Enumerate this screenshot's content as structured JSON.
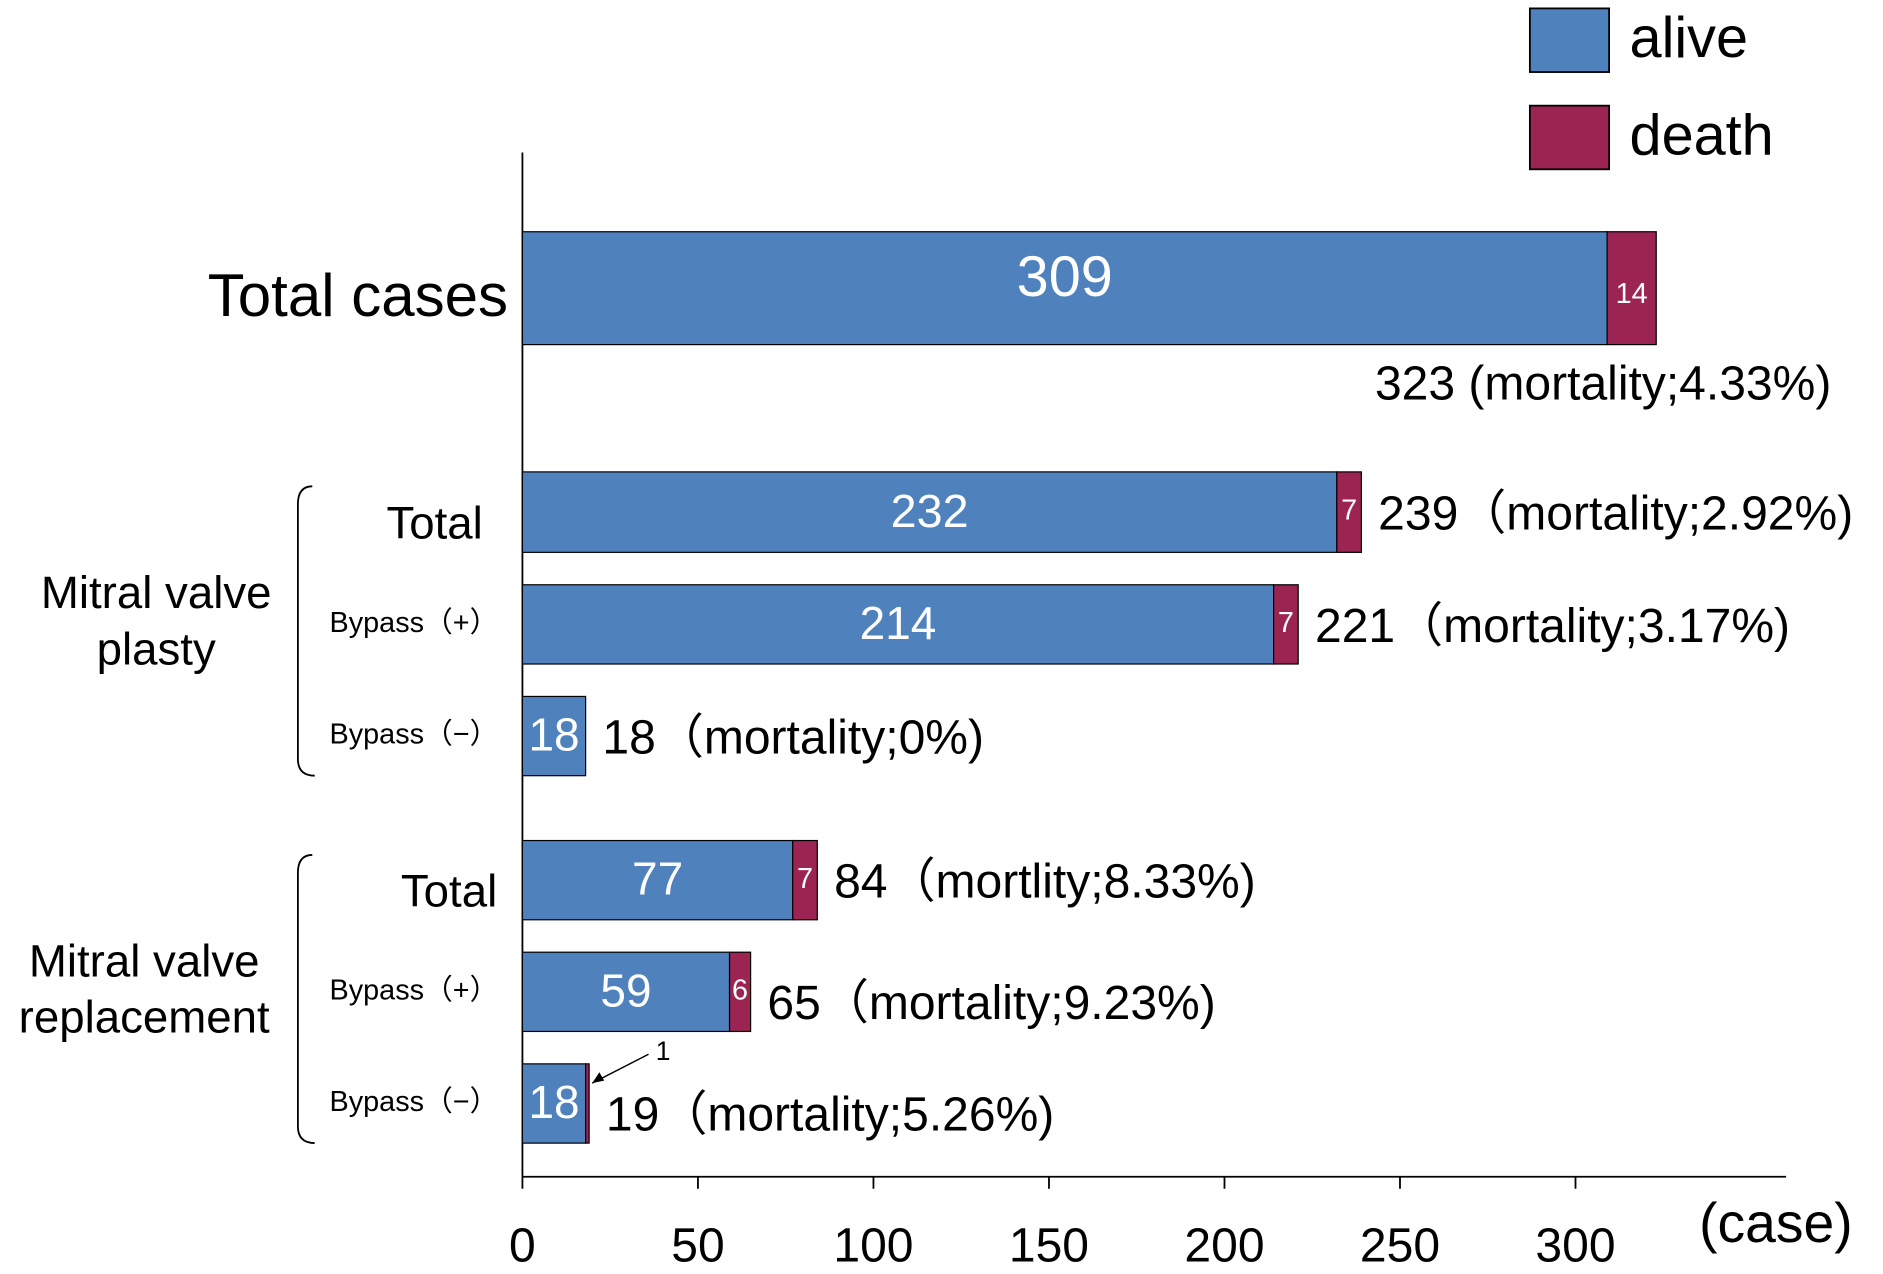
{
  "chart_data": {
    "type": "stacked_barh",
    "categories": [
      "Total cases",
      "Total",
      "Bypass（+）",
      "Bypass（−）",
      "Total",
      "Bypass（+）",
      "Bypass（−）"
    ],
    "groups": [
      {
        "label": [
          "Mitral valve",
          "plasty"
        ],
        "members": [
          1,
          2,
          3
        ]
      },
      {
        "label": [
          "Mitral valve",
          "replacement"
        ],
        "members": [
          4,
          5,
          6
        ]
      }
    ],
    "series": [
      {
        "name": "alive",
        "color": "#4f81bd",
        "values": [
          309,
          232,
          214,
          18,
          77,
          59,
          18
        ]
      },
      {
        "name": "death",
        "color": "#9b2452",
        "values": [
          14,
          7,
          7,
          0,
          7,
          6,
          1
        ]
      }
    ],
    "total_labels": [
      "323 (mortality;4.33%)",
      "239（mortality;2.92%)",
      "221（mortality;3.17%)",
      "18（mortality;0%)",
      "84（mortlity;8.33%)",
      "65（mortality;9.23%)",
      "19（mortality;5.26%)"
    ],
    "xlim": [
      0,
      360
    ],
    "xticks": [
      0,
      50,
      100,
      150,
      200,
      250,
      300
    ],
    "xlabel": "(case)",
    "legend": "top-right"
  }
}
